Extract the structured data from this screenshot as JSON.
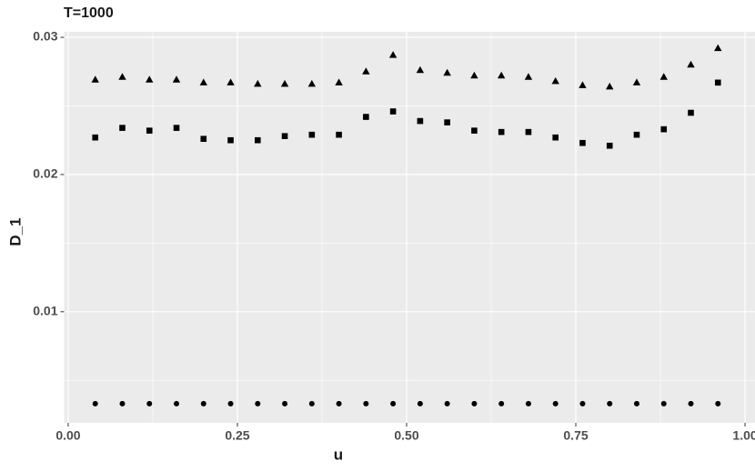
{
  "chart_data": {
    "type": "scatter",
    "title": "T=1000",
    "xlabel": "u",
    "ylabel": "D_1",
    "x": [
      0.04,
      0.08,
      0.12,
      0.16,
      0.2,
      0.24,
      0.28,
      0.32,
      0.36,
      0.4,
      0.44,
      0.48,
      0.52,
      0.56,
      0.6,
      0.64,
      0.68,
      0.72,
      0.76,
      0.8,
      0.84,
      0.88,
      0.92,
      0.96
    ],
    "series": [
      {
        "shape": "triangle",
        "color": "#000000",
        "values": [
          0.0269,
          0.0271,
          0.0269,
          0.0269,
          0.0267,
          0.0267,
          0.0266,
          0.0266,
          0.0266,
          0.0267,
          0.0275,
          0.0287,
          0.0276,
          0.0274,
          0.0272,
          0.0272,
          0.0271,
          0.0268,
          0.0265,
          0.0264,
          0.0267,
          0.0271,
          0.028,
          0.0292
        ]
      },
      {
        "shape": "square",
        "color": "#000000",
        "values": [
          0.0227,
          0.0234,
          0.0232,
          0.0234,
          0.0226,
          0.0225,
          0.0225,
          0.0228,
          0.0229,
          0.0229,
          0.0242,
          0.0246,
          0.0239,
          0.0238,
          0.0232,
          0.0231,
          0.0231,
          0.0227,
          0.0223,
          0.0221,
          0.0229,
          0.0233,
          0.0245,
          0.0267
        ]
      },
      {
        "shape": "circle",
        "color": "#000000",
        "values": [
          0.0033,
          0.0033,
          0.0033,
          0.0033,
          0.0033,
          0.0033,
          0.0033,
          0.0033,
          0.0033,
          0.0033,
          0.0033,
          0.0033,
          0.0033,
          0.0033,
          0.0033,
          0.0033,
          0.0033,
          0.0033,
          0.0033,
          0.0033,
          0.0033,
          0.0033,
          0.0033,
          0.0033
        ]
      }
    ],
    "xlim": [
      -0.006,
      1.006
    ],
    "ylim": [
      0.0019,
      0.0304
    ],
    "xticks": [
      {
        "value": 0,
        "label": "0.00"
      },
      0.25,
      {
        "value": 0.5,
        "label": "0.50"
      },
      0.75,
      {
        "value": 1,
        "label": "1.00"
      }
    ],
    "yticks": [
      0.01,
      0.02,
      0.03
    ],
    "xminor": [
      0.125,
      0.375,
      0.625,
      0.875
    ],
    "yminor": [
      0.005,
      0.015,
      0.025
    ],
    "grid": true
  }
}
